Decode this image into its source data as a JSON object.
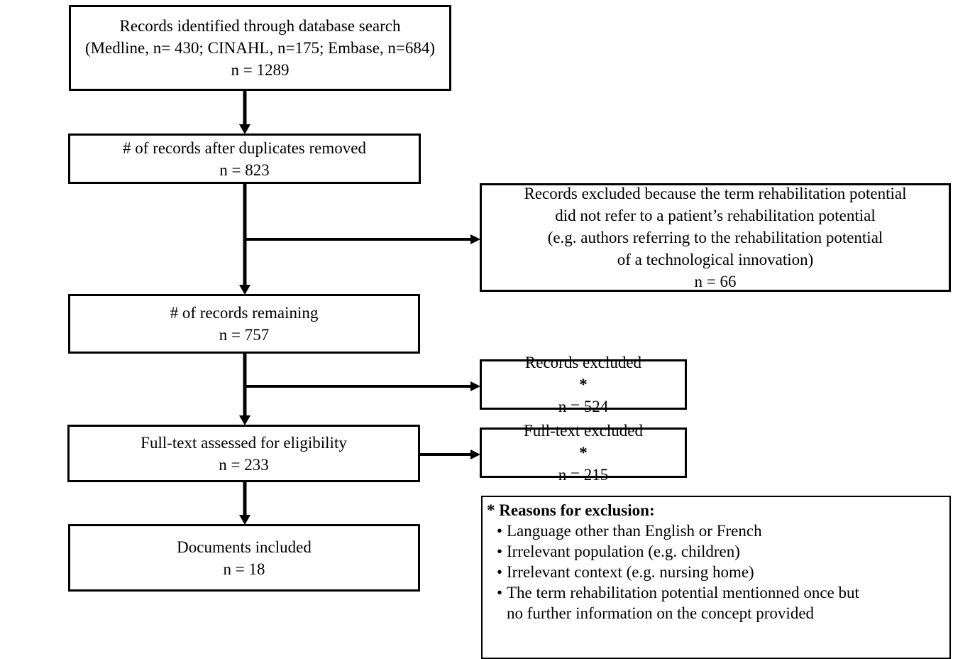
{
  "boxes": {
    "identified": {
      "line1": "Records identified through database search",
      "line2": "(Medline, n= 430; CINAHL, n=175; Embase, n=684)",
      "line3": "n = 1289"
    },
    "after_duplicates": {
      "line1": "# of records after duplicates removed",
      "line2": "n = 823"
    },
    "excluded_term": {
      "line1": "Records excluded because the term rehabilitation potential",
      "line2": "did not refer to a patient’s rehabilitation potential",
      "line3": "(e.g. authors referring to the rehabilitation potential",
      "line4": "of a technological innovation)",
      "line5": "n = 66"
    },
    "remaining": {
      "line1": "# of records remaining",
      "line2": "n = 757"
    },
    "records_excluded": {
      "label": "Records excluded",
      "marker": "*",
      "count": "n = 524"
    },
    "fulltext_assessed": {
      "line1": "Full-text assessed for eligibility",
      "line2": "n = 233"
    },
    "fulltext_excluded": {
      "label": "Full-text excluded",
      "marker": "*",
      "count": "n = 215"
    },
    "included": {
      "line1": "Documents included",
      "line2": "n = 18"
    }
  },
  "reasons": {
    "heading": "* Reasons for exclusion:",
    "items": [
      {
        "text": "Language other than English or French"
      },
      {
        "text": "Irrelevant population (e.g. children)"
      },
      {
        "text": "Irrelevant context (e.g. nursing home)"
      },
      {
        "text": "The term rehabilitation potential mentionned once but",
        "continuation": "no further information on the concept provided"
      }
    ]
  }
}
